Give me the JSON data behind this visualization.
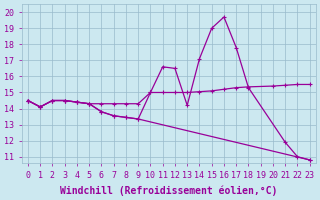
{
  "background_color": "#cce8f0",
  "grid_color": "#99bbcc",
  "line_color": "#990099",
  "xlabel": "Windchill (Refroidissement éolien,°C)",
  "xlabel_fontsize": 7,
  "ylabel_ticks": [
    11,
    12,
    13,
    14,
    15,
    16,
    17,
    18,
    19,
    20
  ],
  "xtick_labels": [
    "0",
    "1",
    "2",
    "3",
    "4",
    "5",
    "6",
    "7",
    "8",
    "9",
    "10",
    "11",
    "12",
    "13",
    "14",
    "15",
    "16",
    "17",
    "18",
    "19",
    "20",
    "21",
    "22",
    "23"
  ],
  "xlim": [
    -0.5,
    23.5
  ],
  "ylim": [
    10.6,
    20.5
  ],
  "line1_x": [
    0,
    1,
    2,
    3,
    4,
    5,
    6,
    7,
    8,
    9,
    10,
    11,
    12,
    13,
    14,
    15,
    16,
    17,
    18,
    20,
    21,
    22,
    23
  ],
  "line1_y": [
    14.5,
    14.1,
    14.5,
    14.5,
    14.4,
    14.3,
    14.3,
    14.3,
    14.3,
    14.3,
    15.0,
    15.0,
    15.0,
    15.0,
    15.05,
    15.1,
    15.2,
    15.3,
    15.35,
    15.4,
    15.45,
    15.5,
    15.5
  ],
  "line2_x": [
    0,
    1,
    2,
    3,
    4,
    5,
    6,
    7,
    8,
    9,
    10,
    11,
    12,
    13,
    14,
    15,
    16,
    17,
    18,
    21,
    22,
    23
  ],
  "line2_y": [
    14.5,
    14.1,
    14.5,
    14.5,
    14.4,
    14.3,
    13.8,
    13.55,
    13.45,
    13.35,
    15.0,
    16.6,
    16.5,
    14.2,
    17.1,
    19.0,
    19.7,
    17.8,
    15.3,
    11.9,
    11.0,
    10.8
  ],
  "line3_x": [
    0,
    1,
    2,
    3,
    4,
    5,
    6,
    7,
    8,
    9,
    23
  ],
  "line3_y": [
    14.5,
    14.1,
    14.5,
    14.5,
    14.4,
    14.3,
    13.8,
    13.55,
    13.45,
    13.35,
    10.8
  ],
  "tick_fontsize": 6,
  "marker_size": 3,
  "linewidth": 0.9
}
